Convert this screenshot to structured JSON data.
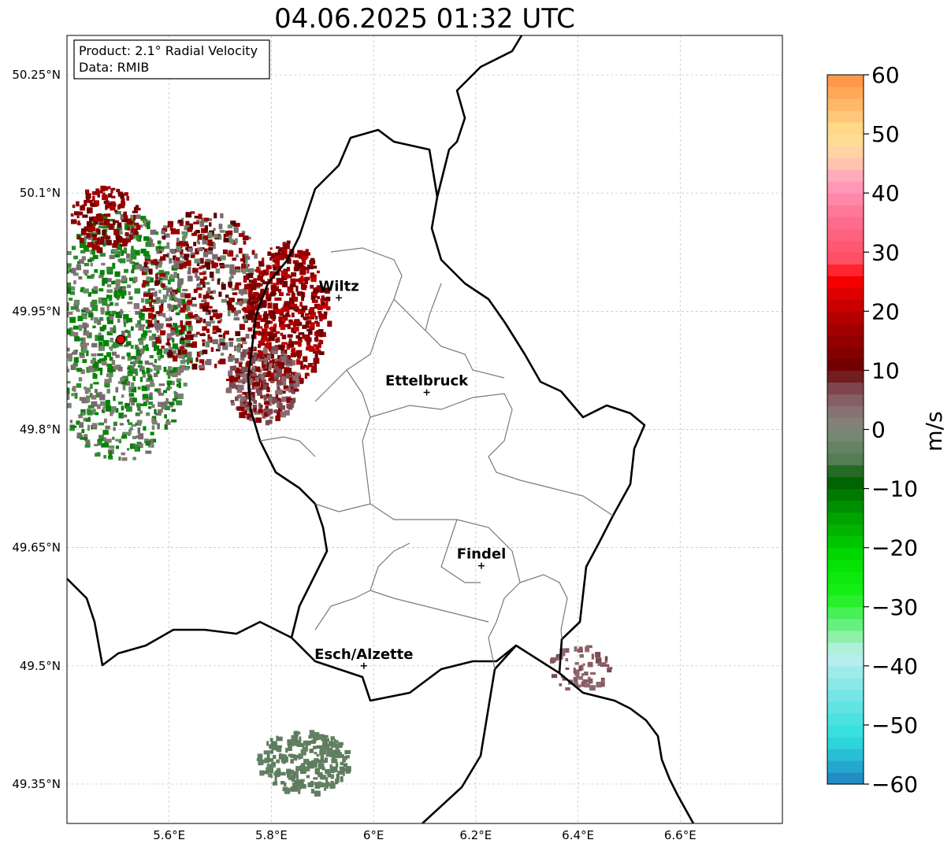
{
  "title": "04.06.2025 01:32 UTC",
  "info_box": {
    "product": "Product: 2.1° Radial Velocity",
    "source": "Data: RMIB"
  },
  "map": {
    "lon_range": [
      5.4,
      6.8
    ],
    "lat_range": [
      49.3,
      50.3
    ],
    "x_ticks": [
      {
        "value": 5.6,
        "label": "5.6°E"
      },
      {
        "value": 5.8,
        "label": "5.8°E"
      },
      {
        "value": 6.0,
        "label": "6°E"
      },
      {
        "value": 6.2,
        "label": "6.2°E"
      },
      {
        "value": 6.4,
        "label": "6.4°E"
      },
      {
        "value": 6.6,
        "label": "6.6°E"
      }
    ],
    "y_ticks": [
      {
        "value": 49.35,
        "label": "49.35°N"
      },
      {
        "value": 49.5,
        "label": "49.5°N"
      },
      {
        "value": 49.65,
        "label": "49.65°N"
      },
      {
        "value": 49.8,
        "label": "49.8°N"
      },
      {
        "value": 49.95,
        "label": "49.95°N"
      },
      {
        "value": 50.1,
        "label": "50.1°N"
      },
      {
        "value": 50.25,
        "label": "50.25°N"
      }
    ],
    "grid": "dashed",
    "radar_site": {
      "lon": 5.505,
      "lat": 49.914
    },
    "cities": [
      {
        "name": "Wiltz",
        "lon": 5.932,
        "lat": 49.967
      },
      {
        "name": "Ettelbruck",
        "lon": 6.104,
        "lat": 49.847
      },
      {
        "name": "Findel",
        "lon": 6.211,
        "lat": 49.627
      },
      {
        "name": "Esch/Alzette",
        "lon": 5.981,
        "lat": 49.5
      }
    ]
  },
  "colorbar": {
    "label": "m/s",
    "range": [
      -60,
      60
    ],
    "ticks": [
      {
        "value": 60,
        "label": "60"
      },
      {
        "value": 50,
        "label": "50"
      },
      {
        "value": 40,
        "label": "40"
      },
      {
        "value": 30,
        "label": "30"
      },
      {
        "value": 20,
        "label": "20"
      },
      {
        "value": 10,
        "label": "10"
      },
      {
        "value": 0,
        "label": "0"
      },
      {
        "value": -10,
        "label": "−10"
      },
      {
        "value": -20,
        "label": "−20"
      },
      {
        "value": -30,
        "label": "−30"
      },
      {
        "value": -40,
        "label": "−40"
      },
      {
        "value": -50,
        "label": "−50"
      },
      {
        "value": -60,
        "label": "−60"
      }
    ],
    "stops": [
      {
        "value": -60,
        "color": "#1f7ec1"
      },
      {
        "value": -56,
        "color": "#26b4d0"
      },
      {
        "value": -52,
        "color": "#2fdfdf"
      },
      {
        "value": -44,
        "color": "#7fe6e6"
      },
      {
        "value": -38,
        "color": "#bff0f0"
      },
      {
        "value": -35,
        "color": "#8ff0a8"
      },
      {
        "value": -32,
        "color": "#55f06a"
      },
      {
        "value": -28,
        "color": "#19f019"
      },
      {
        "value": -22,
        "color": "#00e000"
      },
      {
        "value": -14,
        "color": "#009a00"
      },
      {
        "value": -8,
        "color": "#005a00"
      },
      {
        "value": -6,
        "color": "#4a7a4a"
      },
      {
        "value": 0,
        "color": "#7f8a7a"
      },
      {
        "value": 4,
        "color": "#8a6a70"
      },
      {
        "value": 8,
        "color": "#7a3a40"
      },
      {
        "value": 10,
        "color": "#6a0000"
      },
      {
        "value": 18,
        "color": "#aa0000"
      },
      {
        "value": 26,
        "color": "#ff0000"
      },
      {
        "value": 28,
        "color": "#ff4a60"
      },
      {
        "value": 36,
        "color": "#ff7090"
      },
      {
        "value": 42,
        "color": "#ffa0c0"
      },
      {
        "value": 46,
        "color": "#ffd0a8"
      },
      {
        "value": 50,
        "color": "#ffe090"
      },
      {
        "value": 56,
        "color": "#ffb060"
      },
      {
        "value": 60,
        "color": "#ff9040"
      }
    ]
  },
  "echo_clusters": [
    {
      "lon": 5.5,
      "lat": 49.92,
      "spread_lon": 0.14,
      "spread_lat": 0.16,
      "count": 900,
      "colors": [
        "#6b8a6b",
        "#7a6a6e",
        "#8a7478",
        "#2e8a2e",
        "#0a7a0a",
        "#008800"
      ]
    },
    {
      "lon": 5.66,
      "lat": 49.98,
      "spread_lon": 0.12,
      "spread_lat": 0.1,
      "count": 500,
      "colors": [
        "#8a0000",
        "#a00000",
        "#7a6a6e",
        "#6b8a6b",
        "#5a0000"
      ]
    },
    {
      "lon": 5.83,
      "lat": 49.95,
      "spread_lon": 0.08,
      "spread_lat": 0.09,
      "count": 450,
      "colors": [
        "#a00000",
        "#8a0000",
        "#c00000",
        "#6a0000"
      ]
    },
    {
      "lon": 5.78,
      "lat": 49.86,
      "spread_lon": 0.07,
      "spread_lat": 0.05,
      "count": 300,
      "colors": [
        "#8a6a70",
        "#7a4a50",
        "#8a0000"
      ]
    },
    {
      "lon": 5.47,
      "lat": 50.07,
      "spread_lon": 0.07,
      "spread_lat": 0.04,
      "count": 150,
      "colors": [
        "#8a0000",
        "#a00000",
        "#6a0000"
      ]
    },
    {
      "lon": 5.86,
      "lat": 49.38,
      "spread_lon": 0.09,
      "spread_lat": 0.04,
      "count": 260,
      "colors": [
        "#5e7c5e",
        "#628062"
      ]
    },
    {
      "lon": 6.4,
      "lat": 49.5,
      "spread_lon": 0.06,
      "spread_lat": 0.03,
      "count": 60,
      "colors": [
        "#8a5a60",
        "#7a4a50",
        "#8a6a70"
      ]
    }
  ]
}
